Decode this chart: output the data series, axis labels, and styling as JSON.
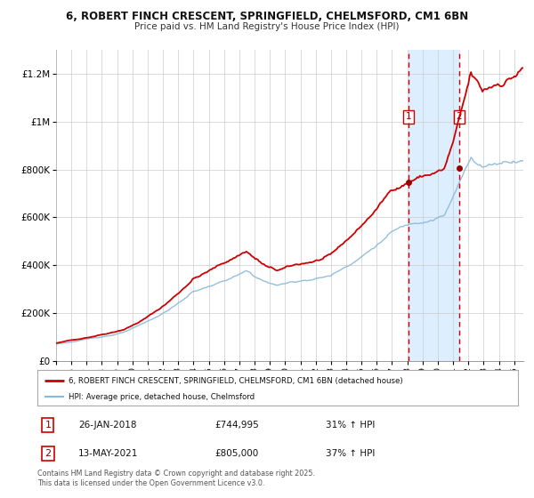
{
  "title1": "6, ROBERT FINCH CRESCENT, SPRINGFIELD, CHELMSFORD, CM1 6BN",
  "title2": "Price paid vs. HM Land Registry's House Price Index (HPI)",
  "xlim_start": 1995.0,
  "xlim_end": 2025.6,
  "ylim": [
    0,
    1300000
  ],
  "yticks": [
    0,
    200000,
    400000,
    600000,
    800000,
    1000000,
    1200000
  ],
  "ytick_labels": [
    "£0",
    "£200K",
    "£400K",
    "£600K",
    "£800K",
    "£1M",
    "£1.2M"
  ],
  "line1_color": "#cc0000",
  "line2_color": "#89b8d9",
  "marker_color": "#990000",
  "vline1_x": 2018.07,
  "vline2_x": 2021.38,
  "shade_color": "#ddeeff",
  "sale1_date": "26-JAN-2018",
  "sale1_price": "£744,995",
  "sale1_hpi": "31% ↑ HPI",
  "sale1_y": 744995,
  "sale2_date": "13-MAY-2021",
  "sale2_price": "£805,000",
  "sale2_hpi": "37% ↑ HPI",
  "sale2_y": 805000,
  "legend1_label": "6, ROBERT FINCH CRESCENT, SPRINGFIELD, CHELMSFORD, CM1 6BN (detached house)",
  "legend2_label": "HPI: Average price, detached house, Chelmsford",
  "footnote": "Contains HM Land Registry data © Crown copyright and database right 2025.\nThis data is licensed under the Open Government Licence v3.0.",
  "bg_color": "#ffffff",
  "grid_color": "#cccccc",
  "prop_seed": 42,
  "hpi_seed": 123
}
